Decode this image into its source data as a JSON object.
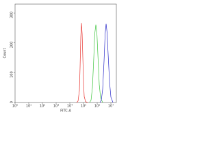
{
  "chart_data": {
    "type": "line",
    "x_label": "FITC-A",
    "y_label": "Count",
    "xscale": "log",
    "xlim": [
      1,
      25000000
    ],
    "xticks": [
      {
        "value": 1,
        "label": "10⁰"
      },
      {
        "value": 10,
        "label": "10¹"
      },
      {
        "value": 100,
        "label": "10²"
      },
      {
        "value": 1000,
        "label": "10³"
      },
      {
        "value": 10000,
        "label": "10⁴"
      },
      {
        "value": 100000,
        "label": "10⁵"
      },
      {
        "value": 1000000,
        "label": "10⁶"
      },
      {
        "value": 10000000,
        "label": "10⁷"
      }
    ],
    "ylim": [
      0,
      330
    ],
    "yticks": [
      0,
      100,
      200,
      300
    ],
    "series": [
      {
        "color": "#e8322e",
        "x": [
          31623,
          39811,
          50119,
          56234,
          63096,
          70795,
          79433,
          89125,
          100000,
          112202,
          141254,
          199526
        ],
        "values": [
          0,
          5,
          40,
          120,
          220,
          266,
          230,
          150,
          70,
          20,
          3,
          0
        ]
      },
      {
        "color": "#3cc43c",
        "x": [
          281838,
          354813,
          446684,
          562341,
          660693,
          794328,
          933254,
          1122018,
          1412538,
          1778279,
          2511886
        ],
        "values": [
          0,
          8,
          50,
          150,
          230,
          261,
          240,
          160,
          60,
          15,
          0
        ]
      },
      {
        "color": "#2828c8",
        "x": [
          1584893,
          1995262,
          2511886,
          3162278,
          3801894,
          4466836,
          5248075,
          6309573,
          7943282,
          10000000,
          14125375
        ],
        "values": [
          0,
          8,
          45,
          140,
          230,
          264,
          235,
          160,
          70,
          18,
          0
        ]
      }
    ]
  }
}
